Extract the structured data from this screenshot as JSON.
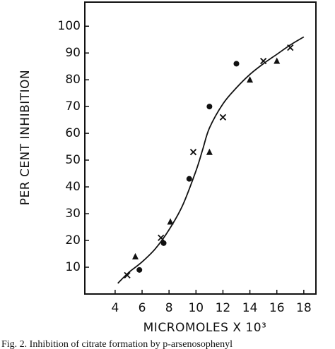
{
  "chart_data": {
    "type": "scatter",
    "x_label": "MICROMOLES X 10³",
    "y_label": "PER CENT INHIBITION",
    "caption": "Fig. 2. Inhibition of citrate formation by p-arsenosophenyl",
    "xlim": [
      1.75,
      18.9
    ],
    "ylim": [
      0,
      109
    ],
    "xticks": [
      4,
      6,
      8,
      10,
      12,
      14,
      16,
      18
    ],
    "yticks": [
      10,
      20,
      30,
      40,
      50,
      60,
      70,
      80,
      90,
      100
    ],
    "series": [
      {
        "marker": "circle",
        "color": "#111111",
        "x": [
          5.8,
          7.6,
          9.5,
          11.0,
          13.0
        ],
        "values": [
          9,
          19,
          43,
          70,
          86
        ]
      },
      {
        "marker": "triangle",
        "color": "#111111",
        "x": [
          5.5,
          8.1,
          11.0,
          14.0,
          16.0
        ],
        "values": [
          14,
          27,
          53,
          80,
          87
        ]
      },
      {
        "marker": "cross",
        "color": "#111111",
        "x": [
          4.9,
          7.4,
          9.8,
          12.0,
          15.0,
          17.0
        ],
        "values": [
          7,
          21,
          53,
          66,
          87,
          92
        ]
      },
      {
        "marker": "line",
        "color": "#111111",
        "x": [
          4.2,
          5,
          6,
          7,
          8,
          9,
          10,
          10.5,
          11,
          12,
          13,
          14,
          15,
          16,
          17,
          18
        ],
        "values": [
          4,
          8,
          12,
          17,
          24,
          33,
          46,
          54,
          62,
          71,
          77,
          82,
          86,
          89.5,
          93,
          96
        ]
      }
    ]
  }
}
